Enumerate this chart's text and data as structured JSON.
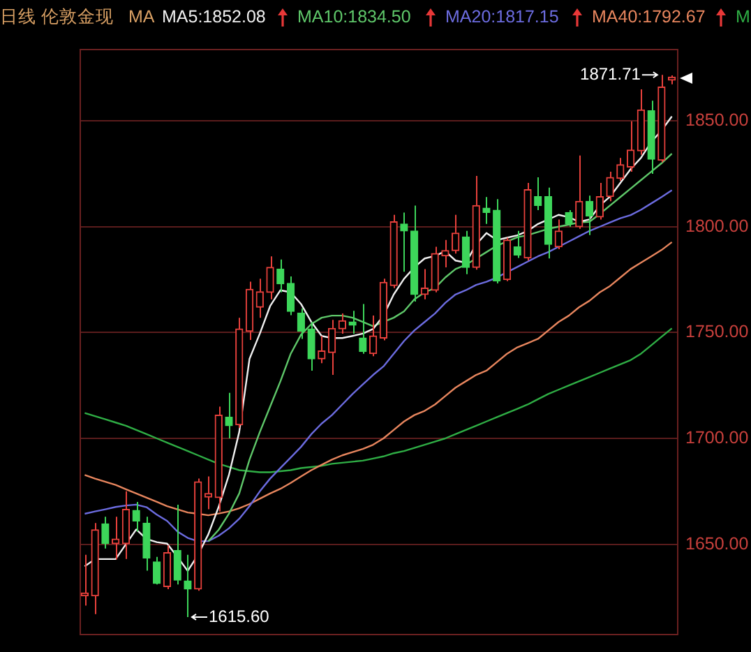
{
  "chart_data": {
    "type": "candlestick",
    "title": "日线 伦敦金现",
    "legend_title": "MA",
    "legend": "top",
    "grid": "y",
    "tick_labels": "y",
    "marker": "none",
    "categories": [
      null,
      null,
      null,
      null,
      null,
      null,
      null,
      null,
      null,
      null,
      null,
      null,
      null,
      null,
      null,
      null,
      null,
      null,
      null,
      null,
      null,
      null,
      null,
      null,
      null,
      null,
      null,
      null,
      null,
      null,
      null,
      null,
      null,
      null,
      null,
      null,
      null,
      null,
      null,
      null,
      null,
      null,
      null,
      null,
      null,
      null,
      null,
      null,
      null,
      null,
      null,
      null,
      null,
      null,
      null,
      null,
      null,
      null
    ],
    "ohlc": [
      [
        1625.6,
        1645,
        1621,
        1627
      ],
      [
        1625.6,
        1660,
        1617,
        1656.8
      ],
      [
        1659.6,
        1663,
        1648,
        1650.3
      ],
      [
        1650.3,
        1663,
        1642.8,
        1652.5
      ],
      [
        1650.3,
        1675,
        1643,
        1666.5
      ],
      [
        1666,
        1670,
        1656,
        1661
      ],
      [
        1660,
        1663,
        1637.5,
        1643.5
      ],
      [
        1641.7,
        1644,
        1631,
        1631.5
      ],
      [
        1630,
        1649.5,
        1628.8,
        1646
      ],
      [
        1647,
        1668.7,
        1631,
        1633
      ],
      [
        1632.7,
        1645,
        1615.6,
        1628.8
      ],
      [
        1628.8,
        1681,
        1628,
        1679.5
      ],
      [
        1672.3,
        1682,
        1666.5,
        1674
      ],
      [
        1672,
        1715,
        1665.5,
        1711
      ],
      [
        1710,
        1721.5,
        1700,
        1706
      ],
      [
        1706.4,
        1757,
        1705,
        1751.7
      ],
      [
        1750.6,
        1774,
        1746.5,
        1770.4
      ],
      [
        1762,
        1775.4,
        1757,
        1769.3
      ],
      [
        1769,
        1786,
        1765.7,
        1780.8
      ],
      [
        1780,
        1784.5,
        1769,
        1773
      ],
      [
        1773.2,
        1776.5,
        1758.2,
        1760
      ],
      [
        1759.2,
        1761.4,
        1747,
        1750.6
      ],
      [
        1751.7,
        1755,
        1732,
        1737.6
      ],
      [
        1737.6,
        1748.4,
        1735.5,
        1741.3
      ],
      [
        1740.5,
        1756,
        1730,
        1752
      ],
      [
        1751.7,
        1759,
        1749.5,
        1755.6
      ],
      [
        1755,
        1760.3,
        1749.5,
        1753.5
      ],
      [
        1747.4,
        1763.5,
        1740,
        1741
      ],
      [
        1740,
        1758,
        1738.8,
        1748.4
      ],
      [
        1747.4,
        1775.4,
        1746.3,
        1773.7
      ],
      [
        1772.2,
        1805.6,
        1771,
        1802.3
      ],
      [
        1801.3,
        1806.7,
        1778.7,
        1798
      ],
      [
        1798,
        1810,
        1764.6,
        1768
      ],
      [
        1768,
        1780,
        1765.7,
        1771
      ],
      [
        1770,
        1790.5,
        1769,
        1787.3
      ],
      [
        1786.2,
        1793.7,
        1780.8,
        1788.7
      ],
      [
        1788.7,
        1805.6,
        1787.3,
        1797
      ],
      [
        1795.2,
        1798,
        1777.6,
        1780.8
      ],
      [
        1780.8,
        1824,
        1779.7,
        1810
      ],
      [
        1808.8,
        1814,
        1801.3,
        1806.7
      ],
      [
        1807.8,
        1813,
        1773.2,
        1774.3
      ],
      [
        1775,
        1794.8,
        1774.3,
        1793.7
      ],
      [
        1790.5,
        1798,
        1785.2,
        1786.6
      ],
      [
        1785.2,
        1820.7,
        1784,
        1817.5
      ],
      [
        1814.2,
        1823.3,
        1807.8,
        1810
      ],
      [
        1814.2,
        1818.5,
        1785,
        1791.6
      ],
      [
        1790.5,
        1803.4,
        1789.4,
        1798
      ],
      [
        1806.7,
        1807.8,
        1800,
        1801.3
      ],
      [
        1800,
        1833.6,
        1799,
        1812
      ],
      [
        1812,
        1814.7,
        1796,
        1805
      ],
      [
        1804.6,
        1820.7,
        1803.4,
        1814.2
      ],
      [
        1814.2,
        1826,
        1812,
        1823.3
      ],
      [
        1822.8,
        1832.5,
        1821.7,
        1829.3
      ],
      [
        1828.2,
        1849.8,
        1826,
        1836.2
      ],
      [
        1835.8,
        1864.9,
        1834,
        1855.2
      ],
      [
        1854.8,
        1859.5,
        1825,
        1831.9
      ],
      [
        1831.4,
        1871.71,
        1830.4,
        1866
      ],
      [
        1869.2,
        1871.5,
        1867.3,
        1870.7
      ]
    ],
    "colors": [
      "#e8413c",
      "#e8413c",
      "#3dd65a",
      "#e8413c",
      "#e8413c",
      "#3dd65a",
      "#3dd65a",
      "#3dd65a",
      "#e8413c",
      "#3dd65a",
      "#3dd65a",
      "#e8413c",
      "#e8413c",
      "#e8413c",
      "#3dd65a",
      "#e8413c",
      "#e8413c",
      "#e8413c",
      "#e8413c",
      "#3dd65a",
      "#3dd65a",
      "#3dd65a",
      "#3dd65a",
      "#e8413c",
      "#e8413c",
      "#e8413c",
      "#3dd65a",
      "#3dd65a",
      "#e8413c",
      "#e8413c",
      "#e8413c",
      "#3dd65a",
      "#3dd65a",
      "#e8413c",
      "#e8413c",
      "#e8413c",
      "#e8413c",
      "#3dd65a",
      "#e8413c",
      "#3dd65a",
      "#3dd65a",
      "#e8413c",
      "#3dd65a",
      "#e8413c",
      "#3dd65a",
      "#3dd65a",
      "#e8413c",
      "#3dd65a",
      "#e8413c",
      "#3dd65a",
      "#e8413c",
      "#e8413c",
      "#e8413c",
      "#e8413c",
      "#e8413c",
      "#3dd65a",
      "#e8413c",
      "#e8413c"
    ],
    "series": [
      {
        "name": "MA5:1852.08",
        "type": "line",
        "color": "#f0f0f0",
        "values": [
          1639.6,
          1643,
          1643,
          1643,
          1650,
          1657,
          1652.5,
          1651,
          1650.3,
          1644,
          1637.4,
          1645,
          1654.7,
          1667.6,
          1682.7,
          1703,
          1737.6,
          1749.5,
          1762.5,
          1770,
          1769,
          1763.5,
          1755,
          1748.4,
          1747.4,
          1747.4,
          1748.4,
          1749.5,
          1751.7,
          1758,
          1768,
          1775.4,
          1780.8,
          1785,
          1786.2,
          1788.4,
          1784,
          1783,
          1791.6,
          1797,
          1793.7,
          1794.8,
          1795.9,
          1798,
          1801.3,
          1803.4,
          1805.6,
          1804.5,
          1802.3,
          1803.4,
          1810,
          1814.2,
          1820.7,
          1827.2,
          1832.5,
          1840,
          1845.5,
          1852.1
        ]
      },
      {
        "name": "MA10:1834.50",
        "type": "line",
        "color": "#5fc86a",
        "values": [
          null,
          null,
          null,
          null,
          null,
          null,
          null,
          null,
          null,
          null,
          null,
          null,
          1651.4,
          1656.8,
          1664.4,
          1674,
          1690,
          1703,
          1715,
          1727,
          1740,
          1749,
          1754,
          1757,
          1758,
          1758,
          1757,
          1755,
          1753,
          1755,
          1757,
          1760,
          1765.7,
          1769,
          1771,
          1776,
          1780,
          1782,
          1785,
          1788,
          1791,
          1793,
          1795,
          1796,
          1797.5,
          1799,
          1800,
          1801,
          1802,
          1802.3,
          1806,
          1810,
          1814,
          1818,
          1822,
          1826,
          1830,
          1834.5
        ]
      },
      {
        "name": "MA20:1817.15",
        "type": "line",
        "color": "#6c6ce0",
        "values": [
          1664.4,
          1665.5,
          1666.5,
          1667.6,
          1668.3,
          1668.7,
          1667.5,
          1664,
          1661,
          1656,
          1653,
          1651.4,
          1651.5,
          1654,
          1657.5,
          1662,
          1668,
          1675,
          1681,
          1686,
          1691,
          1696,
          1702,
          1707,
          1711,
          1716,
          1721,
          1725.5,
          1730,
          1734,
          1740,
          1746,
          1751,
          1755,
          1759,
          1764,
          1768,
          1770,
          1772.5,
          1774,
          1776,
          1778.5,
          1781,
          1783.5,
          1786,
          1788,
          1790.5,
          1793,
          1795.5,
          1798,
          1800,
          1802,
          1804,
          1805.5,
          1808,
          1811,
          1814,
          1817.2
        ]
      },
      {
        "name": "MA40:1792.67",
        "type": "line",
        "color": "#e8865e",
        "values": [
          1682.7,
          1681,
          1679.5,
          1678,
          1676,
          1674,
          1672,
          1670,
          1668,
          1666.5,
          1665,
          1664.4,
          1663.7,
          1664.5,
          1665.5,
          1667,
          1669,
          1671.5,
          1674,
          1676.2,
          1679,
          1682,
          1685,
          1687.5,
          1690,
          1692,
          1693.5,
          1695,
          1697,
          1700,
          1704,
          1708,
          1711,
          1713,
          1716,
          1720,
          1724,
          1727,
          1730,
          1732,
          1736,
          1740,
          1743,
          1745,
          1747,
          1751,
          1755,
          1758,
          1762,
          1765,
          1769,
          1772,
          1776,
          1780,
          1783,
          1786,
          1789,
          1792.7
        ]
      },
      {
        "name": "M",
        "type": "line",
        "color": "#2fae45",
        "values": [
          1712,
          1710.5,
          1709,
          1707.5,
          1706,
          1704,
          1702,
          1700,
          1698,
          1696,
          1694,
          1692,
          1690,
          1688,
          1686.5,
          1685,
          1684.5,
          1684,
          1684,
          1684.5,
          1685,
          1686,
          1686.5,
          1687,
          1688,
          1688.5,
          1689,
          1689.5,
          1690.5,
          1691.5,
          1693,
          1694,
          1695.5,
          1697,
          1698.5,
          1700,
          1702,
          1704,
          1706,
          1708,
          1710,
          1712,
          1714,
          1716,
          1718.5,
          1721,
          1723,
          1725,
          1727,
          1729,
          1731,
          1733,
          1735,
          1737,
          1740,
          1744,
          1748,
          1752
        ]
      }
    ],
    "ylim": [
      1608,
      1884
    ],
    "yticks": [
      {
        "value": 1650,
        "label": "1650.00"
      },
      {
        "value": 1700,
        "label": "1700.00"
      },
      {
        "value": 1750,
        "label": "1750.00"
      },
      {
        "value": 1800,
        "label": "1800.00"
      },
      {
        "value": 1850,
        "label": "1850.00"
      }
    ],
    "annotations": [
      "1871.71",
      "1615.60"
    ]
  }
}
